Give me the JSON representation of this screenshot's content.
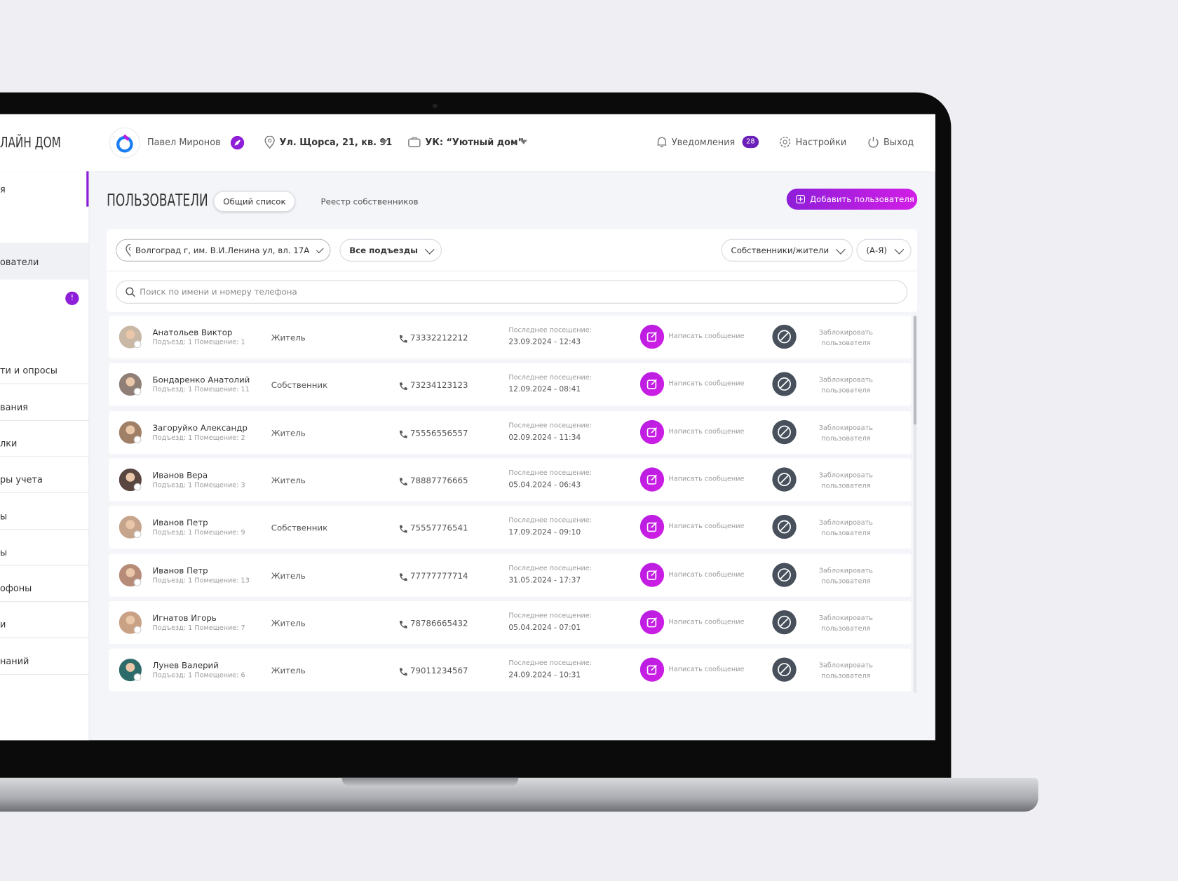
{
  "header": {
    "logo": "ЛАЙН ДОМ",
    "user": "Павел Миронов",
    "address": "Ул. Щорса, 21, кв. 91",
    "company": "УК: “Уютный дом”",
    "notifications": "Уведомления",
    "notifications_count": "28",
    "settings": "Настройки",
    "logout": "Выход"
  },
  "sidebar": {
    "items": [
      "я",
      "ователи",
      "ти и опросы",
      "вания",
      "лки",
      "ры учета",
      "ы",
      "ы",
      "офоны",
      "и",
      "наний"
    ],
    "badge": "!"
  },
  "page": {
    "title": "ПОЛЬЗОВАТЕЛИ",
    "tabs": [
      "Общий список",
      "Реестр собственников"
    ],
    "add_button": "Добавить пользователя"
  },
  "filters": {
    "location": "Волгоград г, им. В.И.Ленина ул, вл. 17А",
    "entrance": "Все подъезды",
    "type": "Собственники/жители",
    "sort": "(А-Я)",
    "search_placeholder": "Поиск по имени и номеру телефона"
  },
  "table": {
    "labels": {
      "visit": "Последнее посещение:",
      "message": "Написать сообщение",
      "block": "Заблокировать пользователя"
    },
    "rows": [
      {
        "name": "Анатольев Виктор",
        "details": "Подъезд: 1 Помещение: 1",
        "role": "Житель",
        "phone": "73332212212",
        "last_visit": "23.09.2024 - 12:43"
      },
      {
        "name": "Бондаренко Анатолий",
        "details": "Подъезд: 1 Помещение: 11",
        "role": "Собственник",
        "phone": "73234123123",
        "last_visit": "12.09.2024 - 08:41"
      },
      {
        "name": "Загоруйко Александр",
        "details": "Подъезд: 1 Помещение: 2",
        "role": "Житель",
        "phone": "75556556557",
        "last_visit": "02.09.2024 - 11:34"
      },
      {
        "name": "Иванов Вера",
        "details": "Подъезд: 1 Помещение: 3",
        "role": "Житель",
        "phone": "78887776665",
        "last_visit": "05.04.2024 - 06:43"
      },
      {
        "name": "Иванов Петр",
        "details": "Подъезд: 1 Помещение: 9",
        "role": "Собственник",
        "phone": "75557776541",
        "last_visit": "17.09.2024 - 09:10"
      },
      {
        "name": "Иванов Петр",
        "details": "Подъезд: 1 Помещение: 13",
        "role": "Житель",
        "phone": "77777777714",
        "last_visit": "31.05.2024 - 17:37"
      },
      {
        "name": "Игнатов Игорь",
        "details": "Подъезд: 1 Помещение: 7",
        "role": "Житель",
        "phone": "78786665432",
        "last_visit": "05.04.2024 - 07:01"
      },
      {
        "name": "Лунев Валерий",
        "details": "Подъезд: 1 Помещение: 6",
        "role": "Житель",
        "phone": "79011234567",
        "last_visit": "24.09.2024 - 10:31"
      }
    ]
  }
}
